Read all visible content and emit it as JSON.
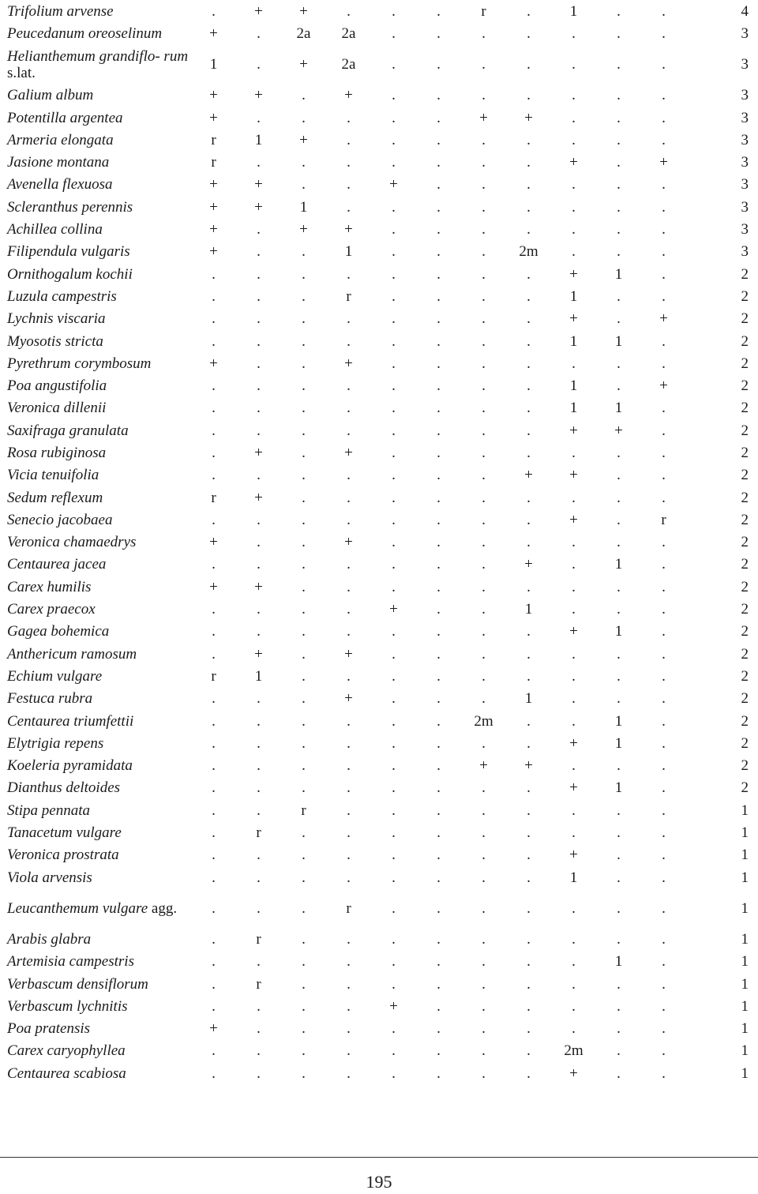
{
  "table": {
    "rows": [
      {
        "species": "Trifolium arvense",
        "values": [
          ".",
          "+",
          "+",
          ".",
          ".",
          ".",
          "r",
          ".",
          "1",
          ".",
          "."
        ],
        "total": "4"
      },
      {
        "species": "Peucedanum oreoselinum",
        "values": [
          "+",
          ".",
          "2a",
          "2a",
          ".",
          ".",
          ".",
          ".",
          ".",
          ".",
          "."
        ],
        "total": "3"
      },
      {
        "species": "Helianthemum grandiflo- rum",
        "species_suffix": "s.lat.",
        "values": [
          "1",
          ".",
          "+",
          "2a",
          ".",
          ".",
          ".",
          ".",
          ".",
          ".",
          "."
        ],
        "total": "3"
      },
      {
        "species": "Galium album",
        "values": [
          "+",
          "+",
          ".",
          "+",
          ".",
          ".",
          ".",
          ".",
          ".",
          ".",
          "."
        ],
        "total": "3"
      },
      {
        "species": "Potentilla argentea",
        "values": [
          "+",
          ".",
          ".",
          ".",
          ".",
          ".",
          "+",
          "+",
          ".",
          ".",
          "."
        ],
        "total": "3"
      },
      {
        "species": "Armeria elongata",
        "values": [
          "r",
          "1",
          "+",
          ".",
          ".",
          ".",
          ".",
          ".",
          ".",
          ".",
          "."
        ],
        "total": "3"
      },
      {
        "species": "Jasione montana",
        "values": [
          "r",
          ".",
          ".",
          ".",
          ".",
          ".",
          ".",
          ".",
          "+",
          ".",
          "+"
        ],
        "total": "3"
      },
      {
        "species": "Avenella flexuosa",
        "values": [
          "+",
          "+",
          ".",
          ".",
          "+",
          ".",
          ".",
          ".",
          ".",
          ".",
          "."
        ],
        "total": "3"
      },
      {
        "species": "Scleranthus perennis",
        "values": [
          "+",
          "+",
          "1",
          ".",
          ".",
          ".",
          ".",
          ".",
          ".",
          ".",
          "."
        ],
        "total": "3"
      },
      {
        "species": "Achillea collina",
        "values": [
          "+",
          ".",
          "+",
          "+",
          ".",
          ".",
          ".",
          ".",
          ".",
          ".",
          "."
        ],
        "total": "3"
      },
      {
        "species": "Filipendula vulgaris",
        "values": [
          "+",
          ".",
          ".",
          "1",
          ".",
          ".",
          ".",
          "2m",
          ".",
          ".",
          "."
        ],
        "total": "3"
      },
      {
        "species": "Ornithogalum kochii",
        "values": [
          ".",
          ".",
          ".",
          ".",
          ".",
          ".",
          ".",
          ".",
          "+",
          "1",
          "."
        ],
        "total": "2"
      },
      {
        "species": "Luzula campestris",
        "values": [
          ".",
          ".",
          ".",
          "r",
          ".",
          ".",
          ".",
          ".",
          "1",
          ".",
          "."
        ],
        "total": "2"
      },
      {
        "species": "Lychnis viscaria",
        "values": [
          ".",
          ".",
          ".",
          ".",
          ".",
          ".",
          ".",
          ".",
          "+",
          ".",
          "+"
        ],
        "total": "2"
      },
      {
        "species": "Myosotis stricta",
        "values": [
          ".",
          ".",
          ".",
          ".",
          ".",
          ".",
          ".",
          ".",
          "1",
          "1",
          "."
        ],
        "total": "2"
      },
      {
        "species": "Pyrethrum corymbosum",
        "values": [
          "+",
          ".",
          ".",
          "+",
          ".",
          ".",
          ".",
          ".",
          ".",
          ".",
          "."
        ],
        "total": "2"
      },
      {
        "species": "Poa angustifolia",
        "values": [
          ".",
          ".",
          ".",
          ".",
          ".",
          ".",
          ".",
          ".",
          "1",
          ".",
          "+"
        ],
        "total": "2"
      },
      {
        "species": "Veronica dillenii",
        "values": [
          ".",
          ".",
          ".",
          ".",
          ".",
          ".",
          ".",
          ".",
          "1",
          "1",
          "."
        ],
        "total": "2"
      },
      {
        "species": "Saxifraga granulata",
        "values": [
          ".",
          ".",
          ".",
          ".",
          ".",
          ".",
          ".",
          ".",
          "+",
          "+",
          "."
        ],
        "total": "2"
      },
      {
        "species": "Rosa rubiginosa",
        "values": [
          ".",
          "+",
          ".",
          "+",
          ".",
          ".",
          ".",
          ".",
          ".",
          ".",
          "."
        ],
        "total": "2"
      },
      {
        "species": "Vicia tenuifolia",
        "values": [
          ".",
          ".",
          ".",
          ".",
          ".",
          ".",
          ".",
          "+",
          "+",
          ".",
          "."
        ],
        "total": "2"
      },
      {
        "species": "Sedum reflexum",
        "values": [
          "r",
          "+",
          ".",
          ".",
          ".",
          ".",
          ".",
          ".",
          ".",
          ".",
          "."
        ],
        "total": "2"
      },
      {
        "species": "Senecio jacobaea",
        "values": [
          ".",
          ".",
          ".",
          ".",
          ".",
          ".",
          ".",
          ".",
          "+",
          ".",
          "r"
        ],
        "total": "2"
      },
      {
        "species": "Veronica chamaedrys",
        "values": [
          "+",
          ".",
          ".",
          "+",
          ".",
          ".",
          ".",
          ".",
          ".",
          ".",
          "."
        ],
        "total": "2"
      },
      {
        "species": "Centaurea jacea",
        "values": [
          ".",
          ".",
          ".",
          ".",
          ".",
          ".",
          ".",
          "+",
          ".",
          "1",
          "."
        ],
        "total": "2"
      },
      {
        "species": "Carex humilis",
        "values": [
          "+",
          "+",
          ".",
          ".",
          ".",
          ".",
          ".",
          ".",
          ".",
          ".",
          "."
        ],
        "total": "2"
      },
      {
        "species": "Carex praecox",
        "values": [
          ".",
          ".",
          ".",
          ".",
          "+",
          ".",
          ".",
          "1",
          ".",
          ".",
          "."
        ],
        "total": "2"
      },
      {
        "species": "Gagea bohemica",
        "values": [
          ".",
          ".",
          ".",
          ".",
          ".",
          ".",
          ".",
          ".",
          "+",
          "1",
          "."
        ],
        "total": "2"
      },
      {
        "species": "Anthericum ramosum",
        "values": [
          ".",
          "+",
          ".",
          "+",
          ".",
          ".",
          ".",
          ".",
          ".",
          ".",
          "."
        ],
        "total": "2"
      },
      {
        "species": "Echium vulgare",
        "values": [
          "r",
          "1",
          ".",
          ".",
          ".",
          ".",
          ".",
          ".",
          ".",
          ".",
          "."
        ],
        "total": "2"
      },
      {
        "species": "Festuca rubra",
        "values": [
          ".",
          ".",
          ".",
          "+",
          ".",
          ".",
          ".",
          "1",
          ".",
          ".",
          "."
        ],
        "total": "2"
      },
      {
        "species": "Centaurea triumfettii",
        "values": [
          ".",
          ".",
          ".",
          ".",
          ".",
          ".",
          "2m",
          ".",
          ".",
          "1",
          "."
        ],
        "total": "2"
      },
      {
        "species": "Elytrigia repens",
        "values": [
          ".",
          ".",
          ".",
          ".",
          ".",
          ".",
          ".",
          ".",
          "+",
          "1",
          "."
        ],
        "total": "2"
      },
      {
        "species": "Koeleria pyramidata",
        "values": [
          ".",
          ".",
          ".",
          ".",
          ".",
          ".",
          "+",
          "+",
          ".",
          ".",
          "."
        ],
        "total": "2"
      },
      {
        "species": "Dianthus deltoides",
        "values": [
          ".",
          ".",
          ".",
          ".",
          ".",
          ".",
          ".",
          ".",
          "+",
          "1",
          "."
        ],
        "total": "2"
      },
      {
        "species": "Stipa pennata",
        "values": [
          ".",
          ".",
          "r",
          ".",
          ".",
          ".",
          ".",
          ".",
          ".",
          ".",
          "."
        ],
        "total": "1"
      },
      {
        "species": "Tanacetum vulgare",
        "values": [
          ".",
          "r",
          ".",
          ".",
          ".",
          ".",
          ".",
          ".",
          ".",
          ".",
          "."
        ],
        "total": "1"
      },
      {
        "species": "Veronica prostrata",
        "values": [
          ".",
          ".",
          ".",
          ".",
          ".",
          ".",
          ".",
          ".",
          "+",
          ".",
          "."
        ],
        "total": "1"
      },
      {
        "species": "Viola arvensis",
        "values": [
          ".",
          ".",
          ".",
          ".",
          ".",
          ".",
          ".",
          ".",
          "1",
          ".",
          "."
        ],
        "total": "1"
      },
      {
        "species": "Leucanthemum vulgare",
        "species_suffix": "agg.",
        "values": [
          ".",
          ".",
          ".",
          "r",
          ".",
          ".",
          ".",
          ".",
          ".",
          ".",
          "."
        ],
        "total": "1"
      },
      {
        "species": "Arabis glabra",
        "values": [
          ".",
          "r",
          ".",
          ".",
          ".",
          ".",
          ".",
          ".",
          ".",
          ".",
          "."
        ],
        "total": "1"
      },
      {
        "species": "Artemisia campestris",
        "values": [
          ".",
          ".",
          ".",
          ".",
          ".",
          ".",
          ".",
          ".",
          ".",
          "1",
          "."
        ],
        "total": "1"
      },
      {
        "species": "Verbascum densiflorum",
        "values": [
          ".",
          "r",
          ".",
          ".",
          ".",
          ".",
          ".",
          ".",
          ".",
          ".",
          "."
        ],
        "total": "1"
      },
      {
        "species": "Verbascum lychnitis",
        "values": [
          ".",
          ".",
          ".",
          ".",
          "+",
          ".",
          ".",
          ".",
          ".",
          ".",
          "."
        ],
        "total": "1"
      },
      {
        "species": "Poa pratensis",
        "values": [
          "+",
          ".",
          ".",
          ".",
          ".",
          ".",
          ".",
          ".",
          ".",
          ".",
          "."
        ],
        "total": "1"
      },
      {
        "species": "Carex caryophyllea",
        "values": [
          ".",
          ".",
          ".",
          ".",
          ".",
          ".",
          ".",
          ".",
          "2m",
          ".",
          "."
        ],
        "total": "1"
      },
      {
        "species": "Centaurea scabiosa",
        "values": [
          ".",
          ".",
          ".",
          ".",
          ".",
          ".",
          ".",
          ".",
          "+",
          ".",
          "."
        ],
        "total": "1"
      }
    ]
  },
  "footer": {
    "page_number": "195"
  }
}
